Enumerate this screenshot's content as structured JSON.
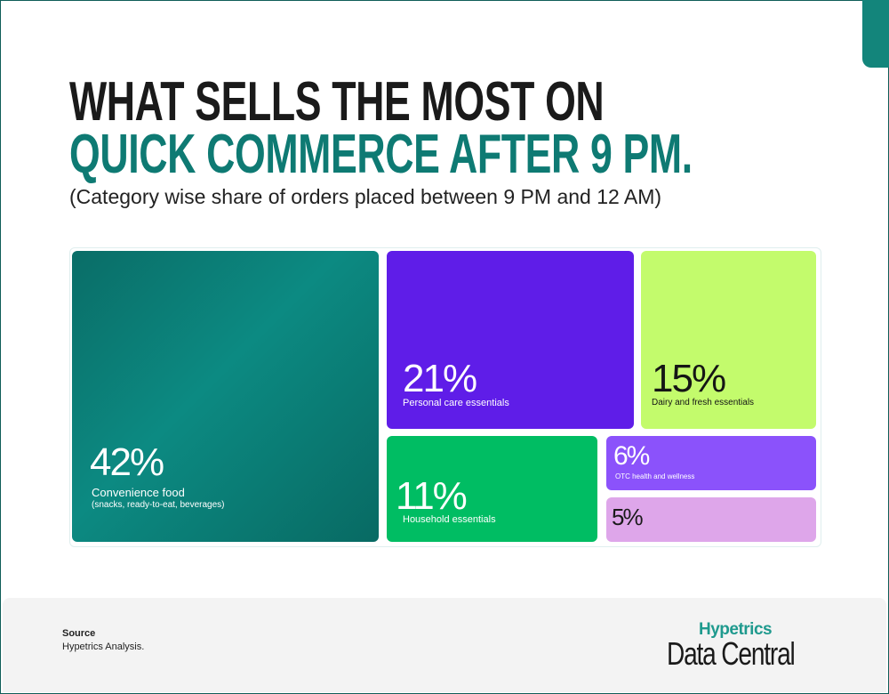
{
  "title_line1": "WHAT SELLS THE MOST ON",
  "title_line2": "QUICK COMMERCE AFTER 9 PM.",
  "subtitle": "(Category wise share of orders placed between 9 PM and 12 AM)",
  "chart_data": {
    "type": "treemap",
    "title": "What sells the most on quick commerce after 9 PM",
    "unit": "%",
    "items": [
      {
        "label": "42%",
        "value": 42,
        "name": "Convenience food",
        "note": "(snacks, ready-to-eat, beverages)",
        "color": "#0b7d76"
      },
      {
        "label": "21%",
        "value": 21,
        "name": "Personal care essentials",
        "color": "#5f1de8"
      },
      {
        "label": "15%",
        "value": 15,
        "name": "Dairy and fresh essentials",
        "color": "#c3fb6c"
      },
      {
        "label": "11%",
        "value": 11,
        "name": "Household essentials",
        "color": "#00bd63"
      },
      {
        "label": "6%",
        "value": 6,
        "name": "OTC health and wellness",
        "color": "#8b52fb"
      },
      {
        "label": "5%",
        "value": 5,
        "color": "#dea6ea"
      }
    ]
  },
  "footer": {
    "source_heading": "Source",
    "source_text": "Hypetrics Analysis.",
    "logo_top": "Hypetrics",
    "logo_bottom": "Data Central"
  }
}
